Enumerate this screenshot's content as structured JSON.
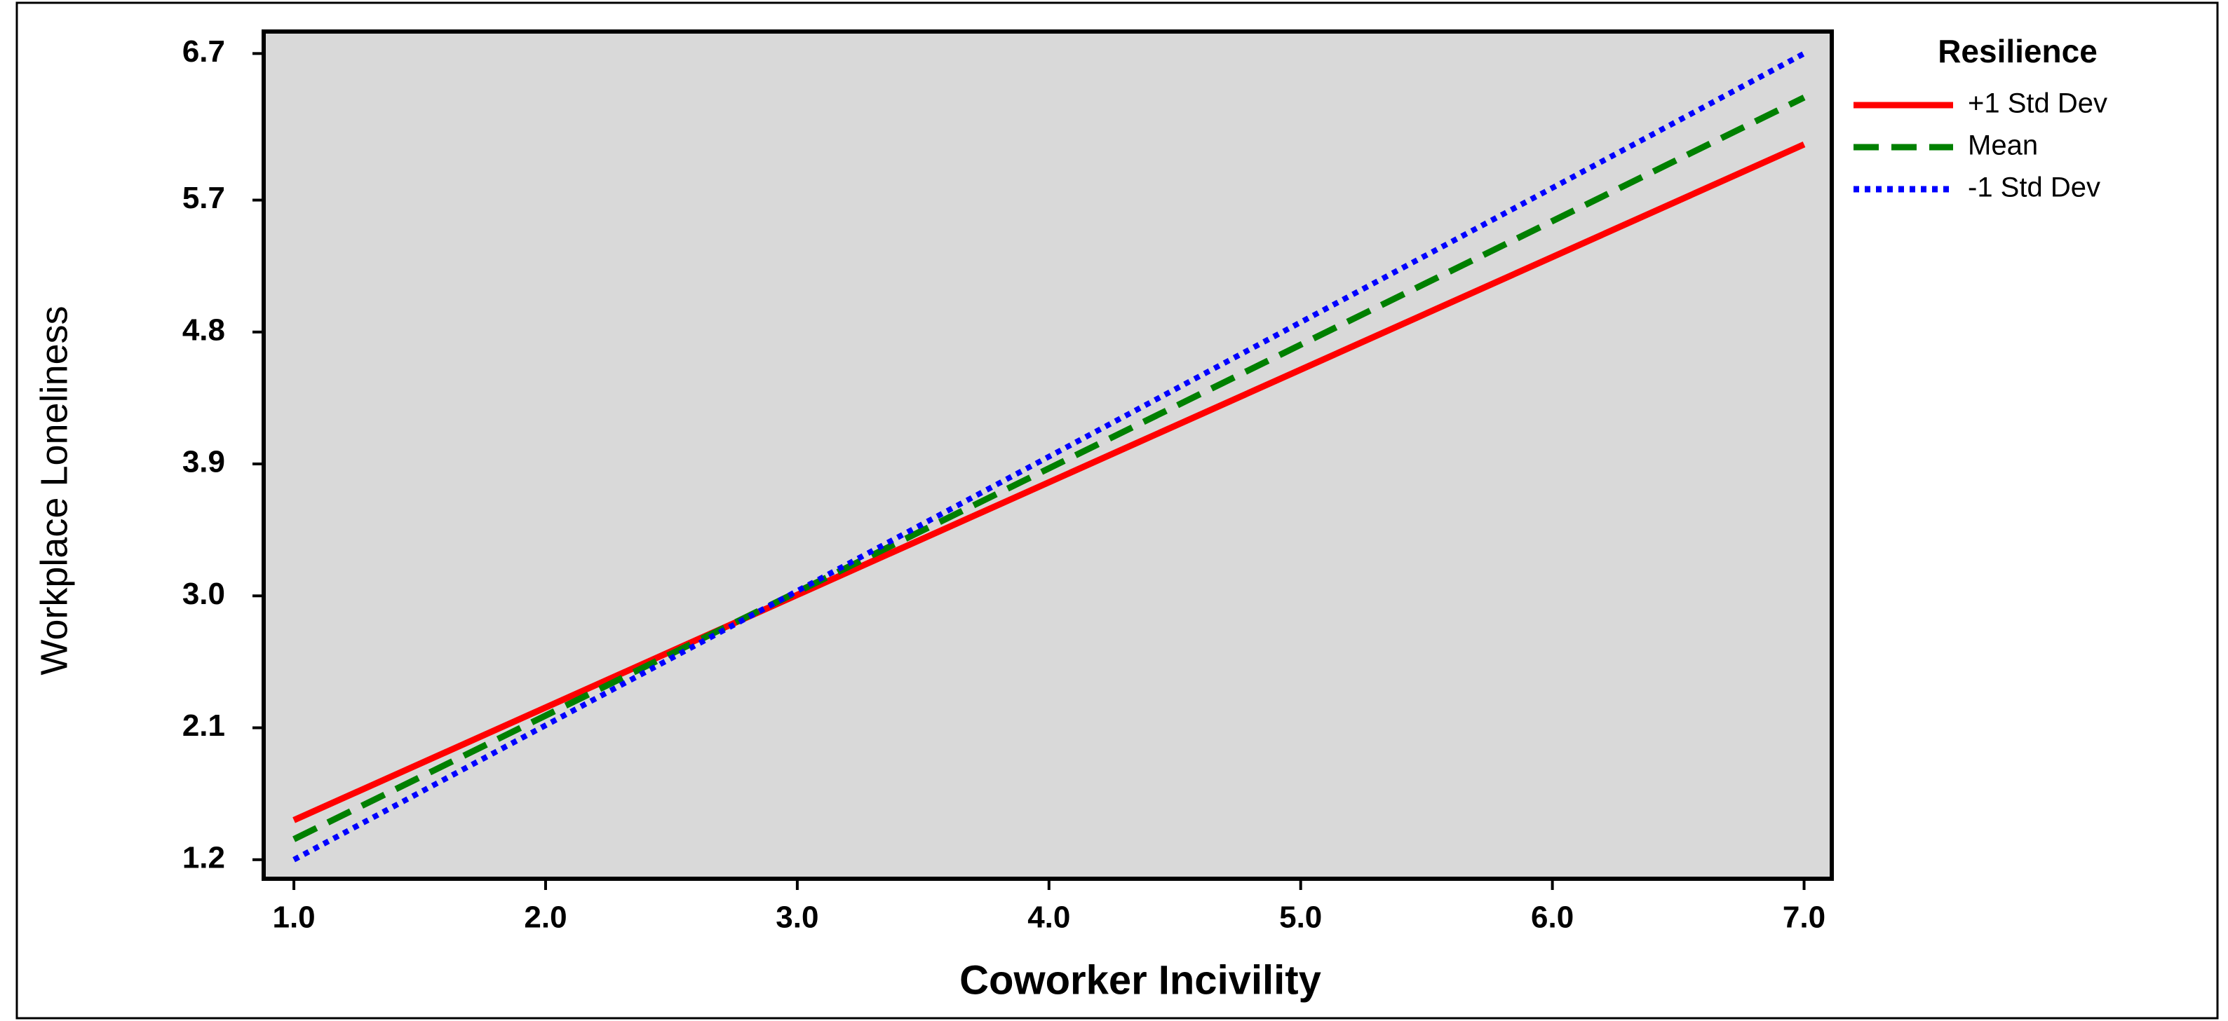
{
  "chart_data": {
    "type": "line",
    "x_label": "Coworker Incivility",
    "y_label": "Workplace Loneliness",
    "x": [
      1,
      7
    ],
    "series": [
      {
        "name": "+1 Std Dev",
        "color": "#ff0000",
        "style": "solid",
        "values": [
          1.47,
          6.08
        ]
      },
      {
        "name": "Mean",
        "color": "#008000",
        "style": "dashed",
        "values": [
          1.34,
          6.4
        ]
      },
      {
        "name": "-1 Std Dev",
        "color": "#0000ff",
        "style": "dotted",
        "values": [
          1.2,
          6.7
        ]
      }
    ],
    "legend_title": "Resilience",
    "legend": "right",
    "xlim": [
      0.88,
      7.11
    ],
    "xticks": [
      {
        "value": 1,
        "label": "1.0"
      },
      {
        "value": 2,
        "label": "2.0"
      },
      {
        "value": 3,
        "label": "3.0"
      },
      {
        "value": 4,
        "label": "4.0"
      },
      {
        "value": 5,
        "label": "5.0"
      },
      {
        "value": 6,
        "label": "6.0"
      },
      {
        "value": 7,
        "label": "7.0"
      }
    ],
    "ylim": [
      1.07,
      6.85
    ],
    "yticks": [
      1.2,
      2.1,
      {
        "value": 3,
        "label": "3.0"
      },
      3.9,
      4.8,
      5.7,
      6.7
    ],
    "plot_background": "#d9d9d9"
  }
}
